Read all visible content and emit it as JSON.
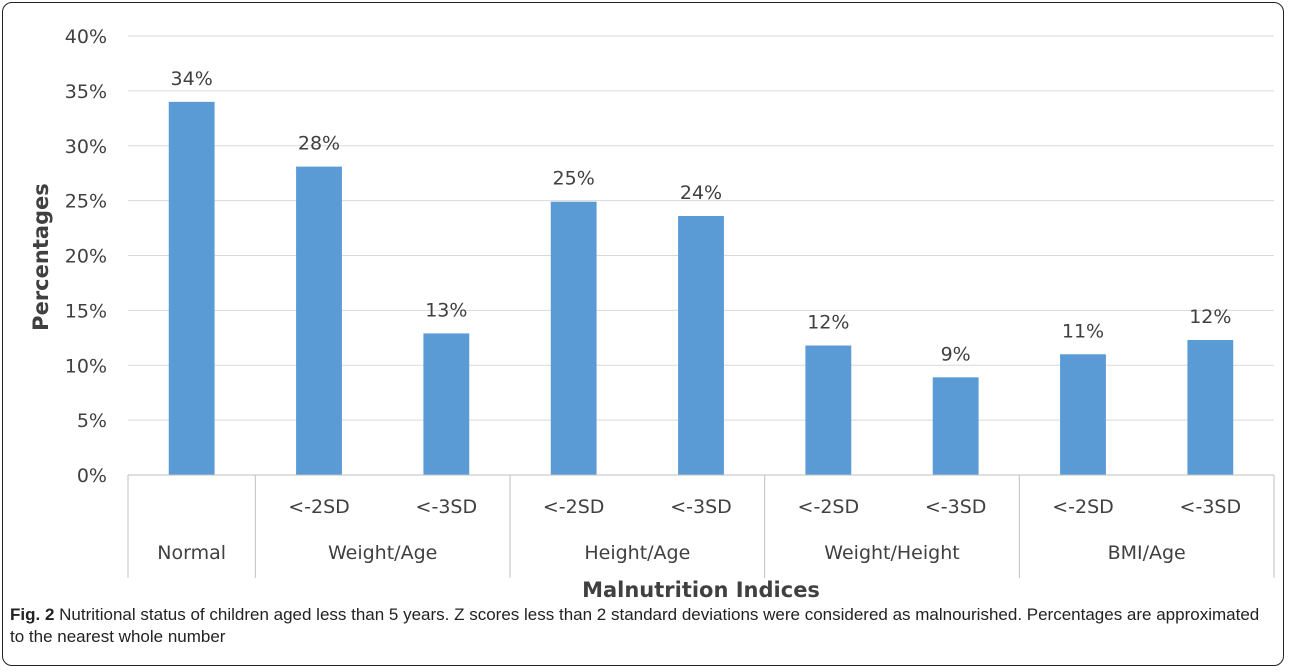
{
  "caption": {
    "label": "Fig. 2",
    "text": " Nutritional status of children aged less than 5 years. Z scores less than 2 standard deviations were considered as malnourished. Percentages are approximated to the nearest whole number"
  },
  "chart_data": {
    "type": "bar",
    "title": "",
    "xlabel": "Malnutrition Indices",
    "ylabel": "Percentages",
    "ylim": [
      0,
      40
    ],
    "y_ticks": [
      "0%",
      "5%",
      "10%",
      "15%",
      "20%",
      "25%",
      "30%",
      "35%",
      "40%"
    ],
    "grid": true,
    "bar_color": "#5b9bd5",
    "groups": [
      {
        "label": "Normal",
        "bars": [
          {
            "sub": "",
            "value": 34,
            "label": "34%"
          }
        ]
      },
      {
        "label": "Weight/Age",
        "bars": [
          {
            "sub": "<-2SD",
            "value": 28.1,
            "label": "28%"
          },
          {
            "sub": "<-3SD",
            "value": 12.9,
            "label": "13%"
          }
        ]
      },
      {
        "label": "Height/Age",
        "bars": [
          {
            "sub": "<-2SD",
            "value": 24.9,
            "label": "25%"
          },
          {
            "sub": "<-3SD",
            "value": 23.6,
            "label": "24%"
          }
        ]
      },
      {
        "label": "Weight/Height",
        "bars": [
          {
            "sub": "<-2SD",
            "value": 11.8,
            "label": "12%"
          },
          {
            "sub": "<-3SD",
            "value": 8.9,
            "label": "9%"
          }
        ]
      },
      {
        "label": "BMI/Age",
        "bars": [
          {
            "sub": "<-2SD",
            "value": 11.0,
            "label": "11%"
          },
          {
            "sub": "<-3SD",
            "value": 12.3,
            "label": "12%"
          }
        ]
      }
    ]
  }
}
